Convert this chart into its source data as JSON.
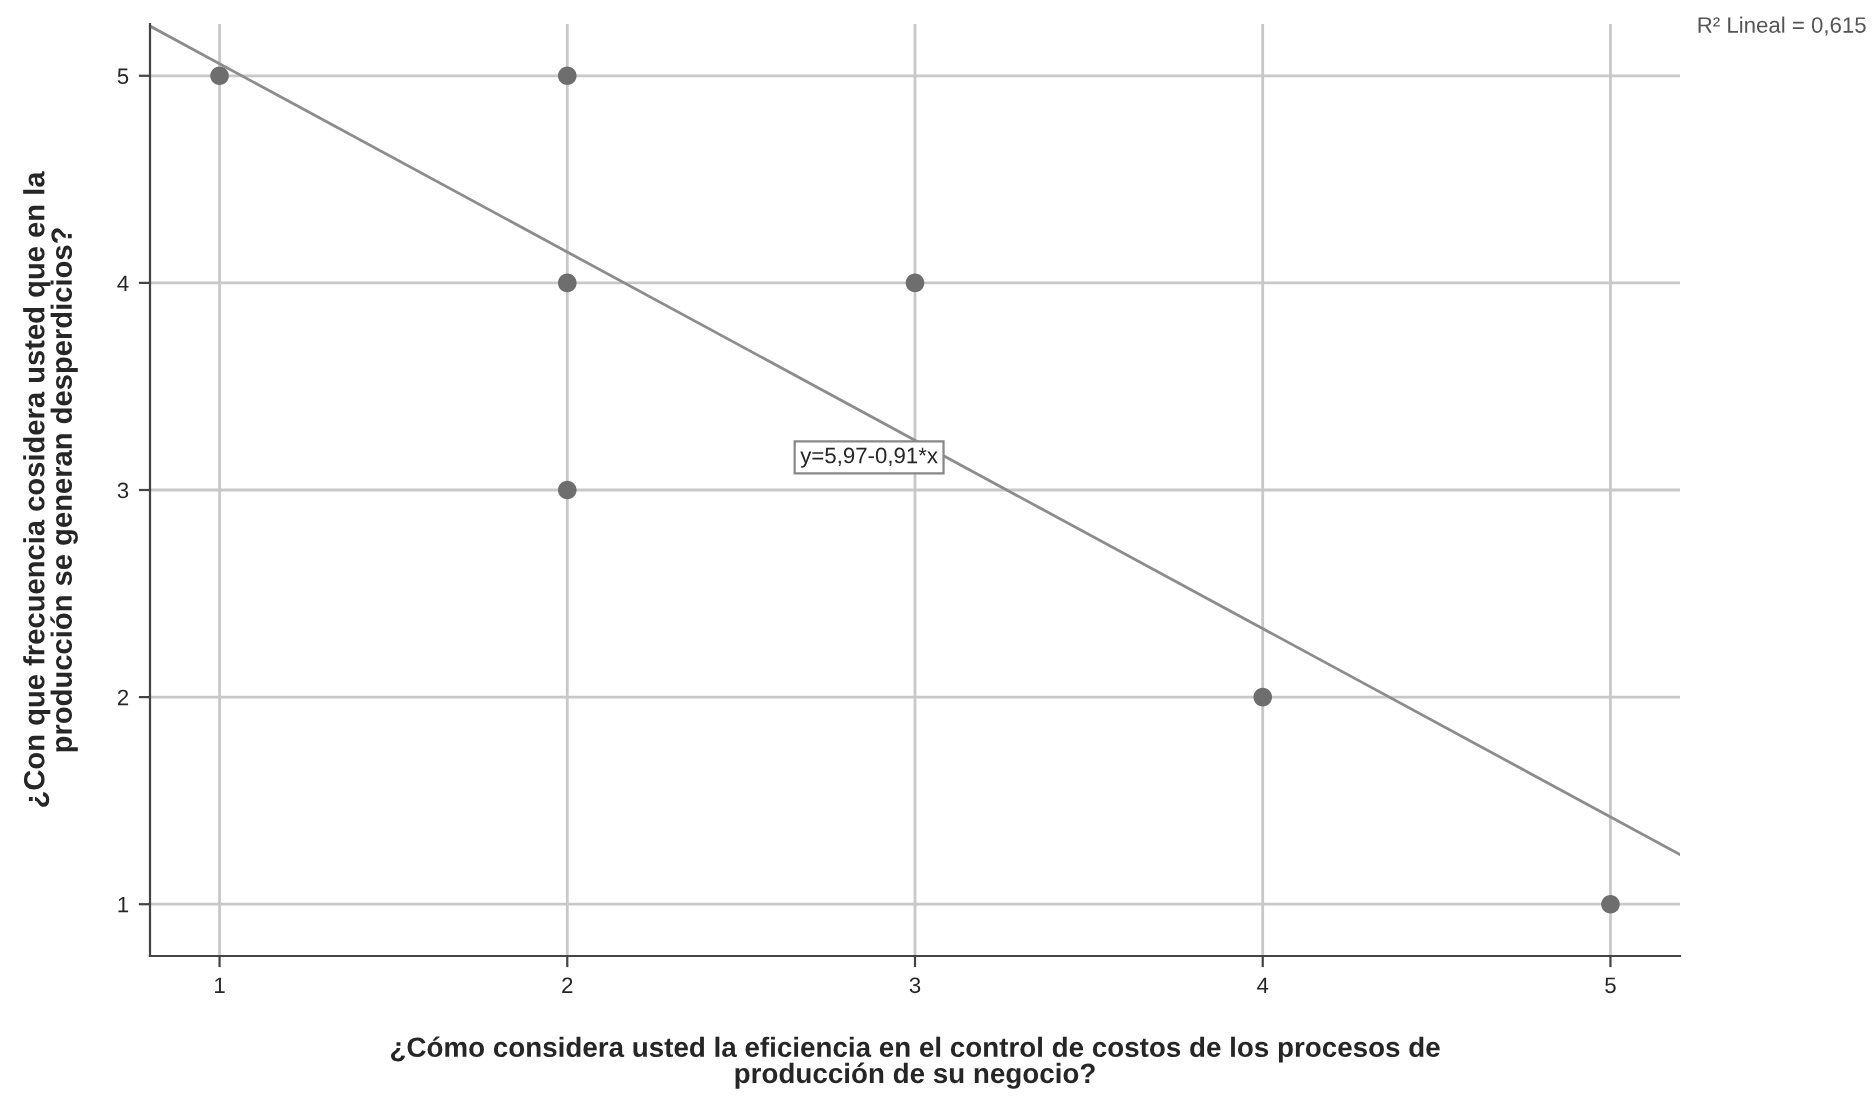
{
  "chart_data": {
    "type": "scatter",
    "xlabel": "¿Cómo considera usted la eficiencia en el control de costos de los procesos de\nproducción de su negocio?",
    "ylabel": "¿Con que frecuencia cosidera usted que en la\nproducción se generan desperdicios?",
    "series": [
      {
        "color": "#6e6e6e",
        "marker": "circle",
        "x": [
          1,
          2,
          2,
          2,
          3,
          4,
          5
        ],
        "values": [
          5,
          5,
          4,
          3,
          4,
          2,
          1
        ]
      },
      {
        "type": "line",
        "color": "#8c8c8c",
        "marker": "none",
        "line_style": "solid",
        "x": [
          0.8,
          5.2
        ],
        "values": [
          5.24,
          1.24
        ]
      }
    ],
    "annotations": [
      "y=5,97-0,91*x",
      "R² Lineal = 0,615"
    ],
    "xlim": [
      0.8,
      5.2
    ],
    "ylim": [
      0.75,
      5.25
    ],
    "xticks": [
      1,
      2,
      3,
      4,
      5
    ],
    "yticks": [
      1,
      2,
      3,
      4,
      5
    ],
    "grid": true
  }
}
